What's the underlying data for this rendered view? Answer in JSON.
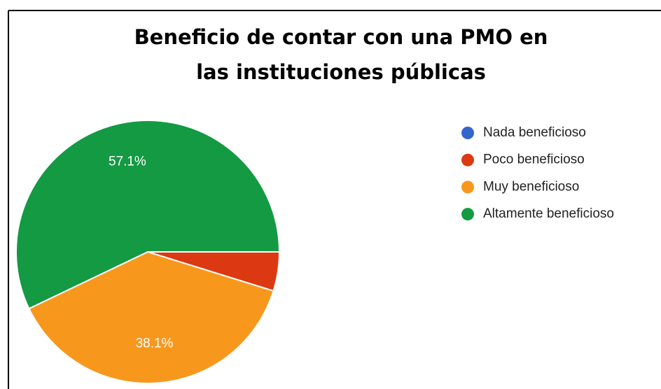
{
  "chart_data": {
    "type": "pie",
    "title": [
      "Beneficio de contar con una PMO en",
      "las instituciones públicas"
    ],
    "categories": [
      "Nada beneficioso",
      "Poco beneficioso",
      "Muy beneficioso",
      "Altamente beneficioso"
    ],
    "values": [
      0,
      4.8,
      38.1,
      57.1
    ],
    "value_labels": [
      null,
      null,
      "38.1%",
      "57.1%"
    ],
    "colors": [
      "#3366cc",
      "#dc3912",
      "#f7981d",
      "#139a43"
    ],
    "legend": "right"
  }
}
